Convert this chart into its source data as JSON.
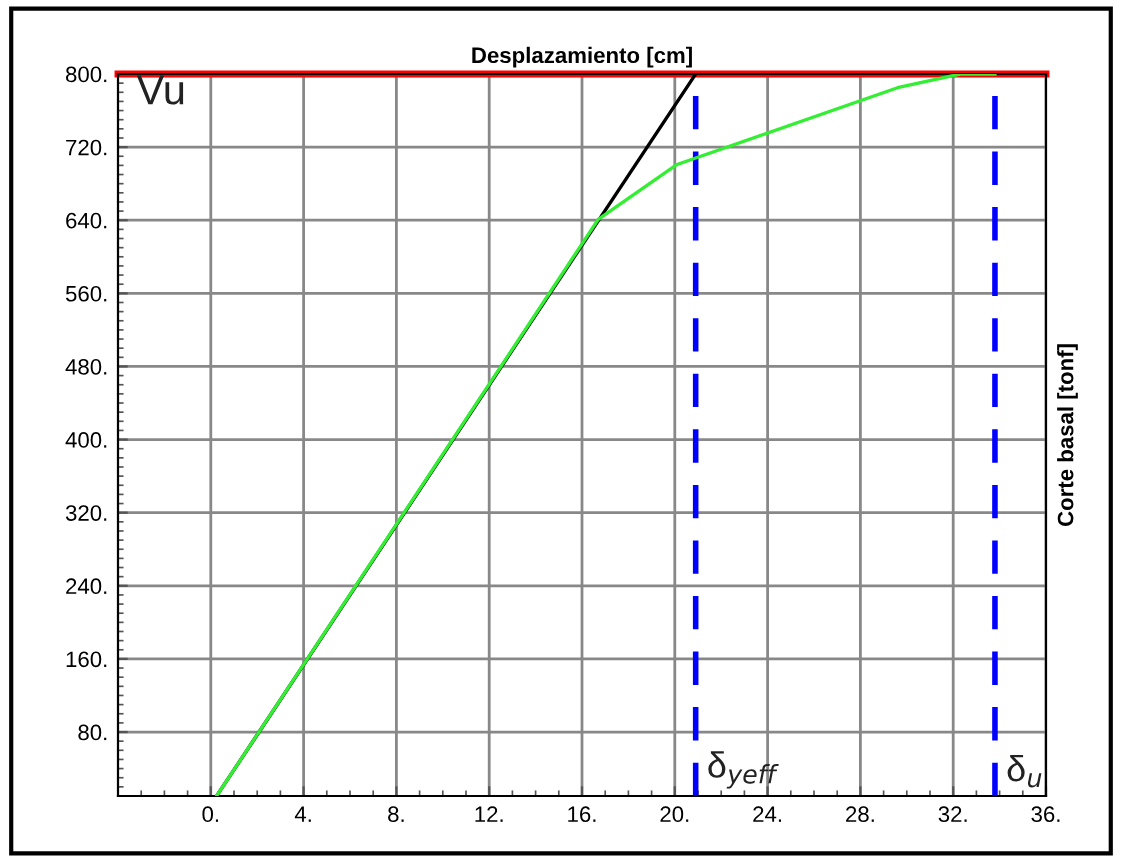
{
  "chart_data": {
    "type": "line",
    "xlabel": "Desplazamiento [cm]",
    "ylabel": "Corte basal [tonf]",
    "series": [
      {
        "color": "#000000",
        "x": [
          0.25,
          20.9
        ],
        "values": [
          10,
          800
        ]
      },
      {
        "color": "#33ee33",
        "x": [
          0.25,
          16.7,
          20.1,
          29.6,
          32.3,
          33.8
        ],
        "values": [
          10,
          641,
          701,
          785,
          800,
          800
        ]
      }
    ],
    "xlim": [
      -4,
      36
    ],
    "ylim": [
      10,
      800
    ],
    "xticks": [
      {
        "value": 0,
        "label": "0."
      },
      {
        "value": 4,
        "label": "4."
      },
      {
        "value": 8,
        "label": "8."
      },
      {
        "value": 12,
        "label": "12."
      },
      {
        "value": 16,
        "label": "16."
      },
      {
        "value": 20,
        "label": "20."
      },
      {
        "value": 24,
        "label": "24."
      },
      {
        "value": 28,
        "label": "28."
      },
      {
        "value": 32,
        "label": "32."
      },
      {
        "value": 36,
        "label": "36."
      }
    ],
    "yticks": [
      {
        "value": 80,
        "label": "80."
      },
      {
        "value": 160,
        "label": "160."
      },
      {
        "value": 240,
        "label": "240."
      },
      {
        "value": 320,
        "label": "320."
      },
      {
        "value": 400,
        "label": "400."
      },
      {
        "value": 480,
        "label": "480."
      },
      {
        "value": 560,
        "label": "560."
      },
      {
        "value": 640,
        "label": "640."
      },
      {
        "value": 720,
        "label": "720."
      },
      {
        "value": 800,
        "label": "800."
      }
    ],
    "ref_lines": [
      {
        "axis": "y",
        "value": 800,
        "label": "Vu",
        "color": "#ff0000",
        "line_style": "solid"
      },
      {
        "axis": "x",
        "value": 20.9,
        "label": "δ$_{yeff}$",
        "color": "#0000ff",
        "line_style": "dashed"
      },
      {
        "axis": "x",
        "value": 33.8,
        "label": "δ$_{u}$",
        "color": "#0000ff",
        "line_style": "dashed"
      }
    ],
    "grid": true,
    "marker": "none",
    "line_style": "solid"
  }
}
